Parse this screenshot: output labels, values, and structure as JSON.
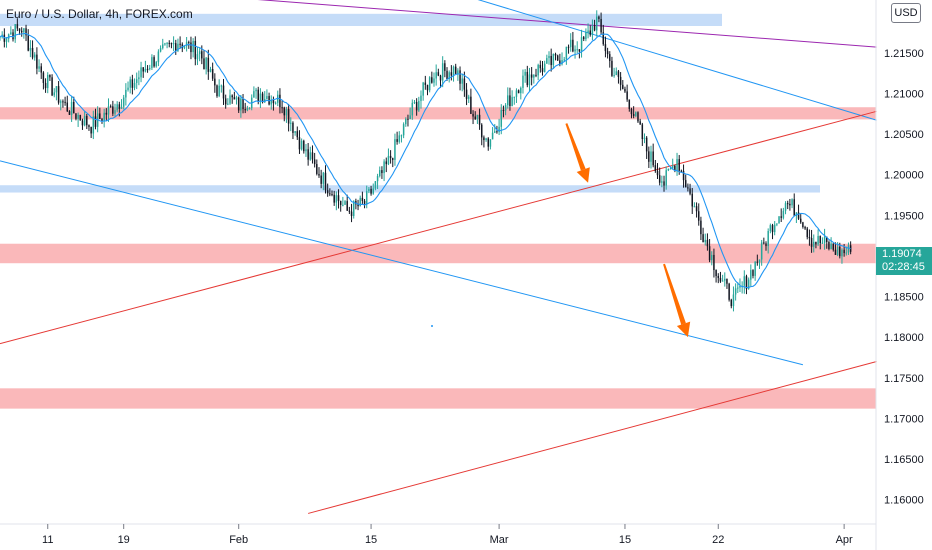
{
  "header": {
    "title": "Euro / U.S. Dollar, 4h, FOREX.com",
    "currency_button": "USD"
  },
  "price_label": {
    "price": "1.19074",
    "countdown": "02:28:45"
  },
  "colors": {
    "up": "#26a69a",
    "down": "#131722",
    "ma": "#2196f3",
    "support_zone": "#f8a0a3",
    "resistance_zone": "#b7d3f6",
    "trendline_red": "#e53935",
    "trendline_blue": "#2196f3",
    "trendline_purple": "#9c27b0",
    "arrow": "#ff6d00",
    "price_label_bg": "#26a69a"
  },
  "chart_data": {
    "type": "candlestick",
    "title": "Euro / U.S. Dollar, 4h, FOREX.com",
    "ylim": [
      1.157,
      1.2215
    ],
    "y_ticks": [
      "1.16000",
      "1.16500",
      "1.17000",
      "1.17500",
      "1.18000",
      "1.18500",
      "1.19000",
      "1.19500",
      "1.20000",
      "1.20500",
      "1.21000",
      "1.21500"
    ],
    "x_ticks": [
      "11",
      "19",
      "Feb",
      "15",
      "Mar",
      "15",
      "22",
      "Apr"
    ],
    "last_price": 1.19074,
    "grid": false,
    "close_path": [
      [
        0,
        1.217
      ],
      [
        10,
        1.218
      ],
      [
        20,
        1.212
      ],
      [
        30,
        1.2085
      ],
      [
        42,
        1.206
      ],
      [
        55,
        1.209
      ],
      [
        68,
        1.2135
      ],
      [
        82,
        1.2165
      ],
      [
        92,
        1.215
      ],
      [
        100,
        1.2105
      ],
      [
        110,
        1.2085
      ],
      [
        120,
        1.21
      ],
      [
        130,
        1.209
      ],
      [
        140,
        1.203
      ],
      [
        150,
        1.199
      ],
      [
        160,
        1.1955
      ],
      [
        168,
        1.1965
      ],
      [
        178,
        1.201
      ],
      [
        190,
        1.208
      ],
      [
        200,
        1.2125
      ],
      [
        210,
        1.213
      ],
      [
        218,
        1.2075
      ],
      [
        225,
        1.204
      ],
      [
        232,
        1.208
      ],
      [
        240,
        1.2115
      ],
      [
        248,
        1.213
      ],
      [
        256,
        1.214
      ],
      [
        262,
        1.2155
      ],
      [
        268,
        1.216
      ],
      [
        275,
        1.219
      ],
      [
        282,
        1.213
      ],
      [
        290,
        1.209
      ],
      [
        298,
        1.203
      ],
      [
        306,
        1.199
      ],
      [
        312,
        1.202
      ],
      [
        318,
        1.1975
      ],
      [
        325,
        1.192
      ],
      [
        332,
        1.187
      ],
      [
        338,
        1.1845
      ],
      [
        344,
        1.187
      ],
      [
        350,
        1.19
      ],
      [
        356,
        1.194
      ],
      [
        362,
        1.1965
      ],
      [
        368,
        1.1955
      ],
      [
        374,
        1.192
      ],
      [
        380,
        1.1915
      ],
      [
        386,
        1.1905
      ],
      [
        392,
        1.1905
      ]
    ],
    "moving_average": "smoothed close (~20 period)",
    "zones": [
      {
        "kind": "resistance",
        "y": [
          1.2183,
          1.2198
        ]
      },
      {
        "kind": "support",
        "y": [
          1.2068,
          1.2083
        ]
      },
      {
        "kind": "resistance",
        "y": [
          1.1978,
          1.1987
        ]
      },
      {
        "kind": "support",
        "y": [
          1.1891,
          1.1915
        ]
      },
      {
        "kind": "support",
        "y": [
          1.1712,
          1.1737
        ]
      }
    ],
    "trendlines": [
      {
        "color": "purple",
        "from": [
          0,
          1.224
        ],
        "to": [
          404,
          1.2157
        ]
      },
      {
        "color": "blue",
        "from": [
          190,
          1.224
        ],
        "to": [
          404,
          1.2067
        ]
      },
      {
        "color": "red",
        "from": [
          0,
          1.1792
        ],
        "to": [
          404,
          1.2078
        ]
      },
      {
        "color": "blue",
        "from": [
          0,
          1.2017
        ],
        "to": [
          370,
          1.1766
        ]
      },
      {
        "color": "red",
        "from": [
          142,
          1.1583
        ],
        "to": [
          404,
          1.177
        ]
      }
    ],
    "arrows": [
      {
        "from": [
          261,
          1.2063
        ],
        "to": [
          271,
          1.199
        ]
      },
      {
        "from": [
          306,
          1.189
        ],
        "to": [
          317,
          1.18
        ]
      }
    ]
  }
}
